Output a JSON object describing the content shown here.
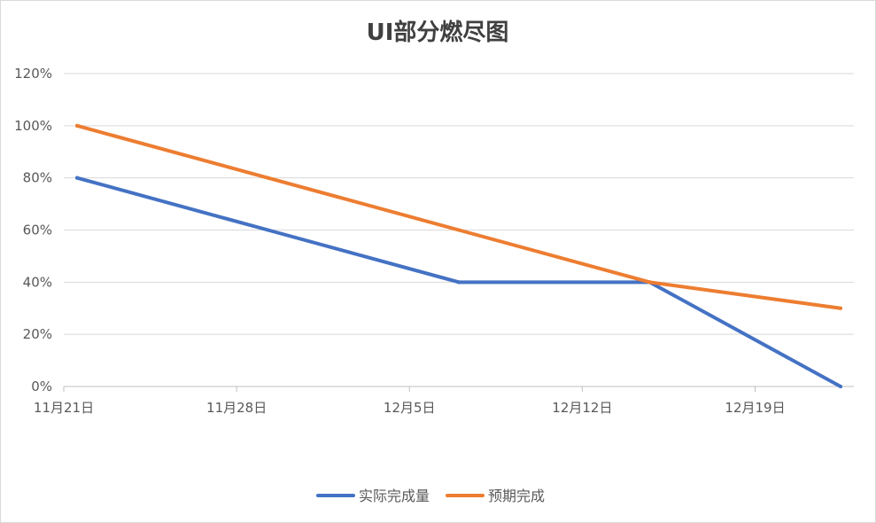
{
  "chart_data": {
    "type": "line",
    "title": "UI部分燃尽图",
    "xlabel": "",
    "ylabel": "",
    "x_ticks": [
      "11月21日",
      "11月28日",
      "12月5日",
      "12月12日",
      "12月19日"
    ],
    "x_domain": [
      "2023-11-21",
      "2023-12-23"
    ],
    "ylim": [
      0,
      1.2
    ],
    "y_ticks": [
      0,
      0.2,
      0.4,
      0.6,
      0.8,
      1.0,
      1.2
    ],
    "y_tick_labels": [
      "0%",
      "20%",
      "40%",
      "60%",
      "80%",
      "100%",
      "120%"
    ],
    "grid": true,
    "legend_position": "bottom",
    "series": [
      {
        "name": "实际完成量",
        "color": "#4472C4",
        "x": [
          "11-21",
          "11-28",
          "12-5",
          "12-12",
          "12-19"
        ],
        "values": [
          0.8,
          0.6,
          0.4,
          0.4,
          0.0
        ]
      },
      {
        "name": "预期完成",
        "color": "#ED7D31",
        "x": [
          "11-21",
          "11-28",
          "12-5",
          "12-12",
          "12-19"
        ],
        "values": [
          1.0,
          0.8,
          0.6,
          0.4,
          0.3
        ]
      }
    ]
  }
}
